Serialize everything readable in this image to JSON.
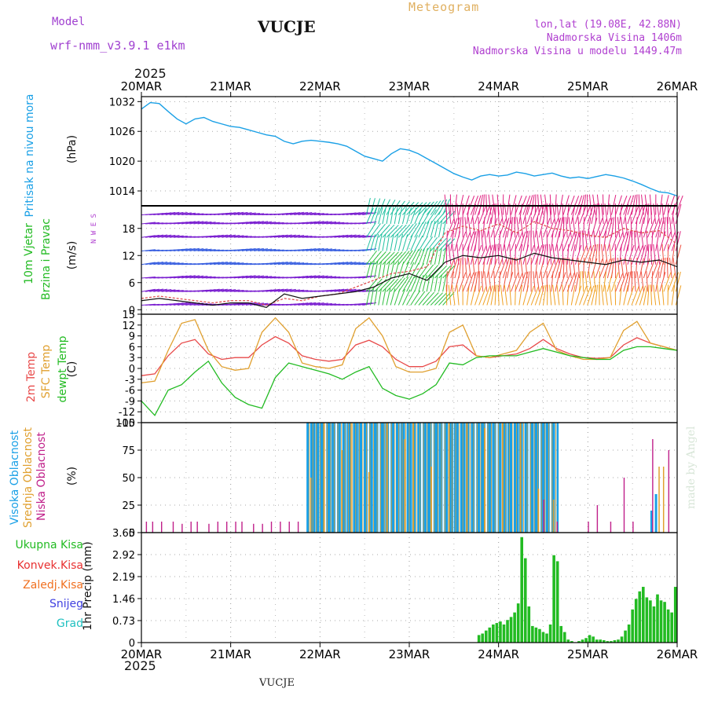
{
  "header": {
    "model_label": "Model",
    "model_name": "wrf-nmm_v3.9.1 e1km",
    "station": "VUCJE",
    "title": "Meteogram",
    "lonlat": "lon,lat (19.08E, 42.88N)",
    "elevation": "Nadmorska Visina 1406m",
    "model_elevation": "Nadmorska Visina u modelu 1449.47m",
    "year": "2025",
    "bottom_station": "VUCJE",
    "credit": "made by Angel"
  },
  "colors": {
    "pressure": "#1aa0e6",
    "wind_label": "#22bb22",
    "wind_speed": "#111111",
    "wind_gust": "#e05050",
    "temp2m": "#e84a4a",
    "sfc_temp": "#e0a030",
    "dewpoint": "#22bb22",
    "cloud_high": "#1aa0e6",
    "cloud_mid": "#e0a030",
    "cloud_low": "#c0208a",
    "precip_total": "#22bb22",
    "precip_conv": "#e83030",
    "precip_frz": "#f07020",
    "snow": "#4040e0",
    "hail": "#20c0c0",
    "model_text": "#a040d0",
    "title_text": "#e0b060",
    "info_text": "#b040d0"
  },
  "chart_data": [
    {
      "type": "line",
      "id": "pressure",
      "ylabel_main": "Pritisak na nivou mora",
      "ylabel_unit": "(hPa)",
      "ylim": [
        1011,
        1033
      ],
      "yticks": [
        1014,
        1020,
        1026,
        1032
      ],
      "x_categories": [
        "20MAR",
        "21MAR",
        "22MAR",
        "23MAR",
        "24MAR",
        "25MAR",
        "26MAR"
      ],
      "series": [
        {
          "name": "Pritisak na nivou mora",
          "x": [
            0,
            0.1,
            0.2,
            0.3,
            0.4,
            0.5,
            0.6,
            0.7,
            0.8,
            0.9,
            1.0,
            1.1,
            1.2,
            1.3,
            1.4,
            1.5,
            1.6,
            1.7,
            1.8,
            1.9,
            2.0,
            2.1,
            2.2,
            2.3,
            2.4,
            2.5,
            2.6,
            2.7,
            2.8,
            2.9,
            3.0,
            3.1,
            3.2,
            3.3,
            3.4,
            3.5,
            3.6,
            3.7,
            3.8,
            3.9,
            4.0,
            4.1,
            4.2,
            4.3,
            4.4,
            4.5,
            4.6,
            4.7,
            4.8,
            4.9,
            5.0,
            5.1,
            5.2,
            5.3,
            5.4,
            5.5,
            5.6,
            5.7,
            5.8,
            5.9,
            6.0
          ],
          "values": [
            1030.5,
            1031.8,
            1031.6,
            1030.0,
            1028.5,
            1027.5,
            1028.5,
            1028.8,
            1028.0,
            1027.5,
            1027.0,
            1026.8,
            1026.3,
            1025.8,
            1025.3,
            1025.0,
            1024.0,
            1023.5,
            1024.0,
            1024.2,
            1024.0,
            1023.8,
            1023.5,
            1023.0,
            1022.0,
            1021.0,
            1020.5,
            1020.0,
            1021.5,
            1022.5,
            1022.2,
            1021.5,
            1020.5,
            1019.5,
            1018.5,
            1017.5,
            1016.8,
            1016.2,
            1017.0,
            1017.3,
            1017.0,
            1017.2,
            1017.8,
            1017.5,
            1017.0,
            1017.3,
            1017.6,
            1017.0,
            1016.6,
            1016.8,
            1016.5,
            1016.9,
            1017.3,
            1017.0,
            1016.6,
            1016.0,
            1015.3,
            1014.5,
            1013.8,
            1013.6,
            1013.0
          ]
        }
      ]
    },
    {
      "type": "line",
      "id": "wind",
      "ylabel_main": "10m Vjetar",
      "ylabel_sub": "Brzina i Pravac",
      "ylabel_unit": "(m/s)",
      "compass": "N W E S",
      "ylim": [
        -1,
        23
      ],
      "yticks": [
        0,
        6,
        12,
        18
      ],
      "series": [
        {
          "name": "Brzina",
          "x": [
            0,
            0.2,
            0.4,
            0.6,
            0.8,
            1.0,
            1.2,
            1.4,
            1.6,
            1.8,
            2.0,
            2.2,
            2.4,
            2.6,
            2.8,
            3.0,
            3.2,
            3.4,
            3.6,
            3.8,
            4.0,
            4.2,
            4.4,
            4.6,
            4.8,
            5.0,
            5.2,
            5.4,
            5.6,
            5.8,
            6.0
          ],
          "values": [
            2.0,
            2.5,
            2.0,
            1.5,
            1.0,
            1.5,
            1.5,
            0.5,
            3.5,
            2.5,
            3.0,
            3.5,
            4.0,
            5.0,
            7.0,
            8.0,
            6.5,
            10.5,
            12.0,
            11.5,
            12.0,
            11.0,
            12.5,
            11.5,
            11.0,
            10.5,
            10.0,
            11.0,
            10.5,
            11.0,
            9.5
          ]
        },
        {
          "name": "Udar",
          "x": [
            0,
            0.2,
            0.4,
            0.6,
            0.8,
            1.0,
            1.2,
            1.4,
            1.6,
            1.8,
            2.0,
            2.2,
            2.4,
            2.6,
            2.8,
            3.0,
            3.2,
            3.4,
            3.6,
            3.8,
            4.0,
            4.2,
            4.4,
            4.6,
            4.8,
            5.0,
            5.2,
            5.4,
            5.6,
            5.8,
            6.0
          ],
          "values": [
            2.5,
            3.0,
            2.5,
            2.0,
            1.5,
            2.0,
            2.0,
            1.0,
            2.5,
            2.0,
            3.0,
            3.5,
            5.0,
            6.5,
            8.0,
            8.5,
            9.5,
            17.0,
            18.5,
            17.5,
            19.0,
            17.0,
            19.5,
            18.0,
            17.5,
            16.5,
            16.0,
            18.0,
            17.0,
            17.5,
            14.5
          ]
        }
      ]
    },
    {
      "type": "line",
      "id": "temperature",
      "ylabel_main": "2m Temp",
      "ylabel_sub": "SFC Temp",
      "ylabel_sub2": "dewpt Temp",
      "ylabel_unit": "(C)",
      "ylim": [
        -15,
        15
      ],
      "yticks": [
        -15,
        -12,
        -9,
        -6,
        -3,
        0,
        3,
        6,
        9,
        12,
        15
      ],
      "series": [
        {
          "name": "2m Temp",
          "x": [
            0,
            0.15,
            0.3,
            0.45,
            0.6,
            0.75,
            0.9,
            1.05,
            1.2,
            1.35,
            1.5,
            1.65,
            1.8,
            1.95,
            2.1,
            2.25,
            2.4,
            2.55,
            2.7,
            2.85,
            3.0,
            3.15,
            3.3,
            3.45,
            3.6,
            3.75,
            3.9,
            4.05,
            4.2,
            4.35,
            4.5,
            4.65,
            4.8,
            4.95,
            5.1,
            5.25,
            5.4,
            5.55,
            5.7,
            5.85,
            6.0
          ],
          "values": [
            -2.0,
            -1.5,
            3.5,
            7.0,
            8.0,
            4.0,
            2.5,
            3.0,
            3.0,
            6.5,
            8.8,
            7.0,
            3.5,
            2.5,
            2.0,
            2.5,
            6.5,
            7.8,
            6.0,
            2.5,
            0.5,
            0.5,
            2.0,
            6.0,
            6.5,
            3.5,
            3.0,
            3.5,
            4.0,
            5.5,
            8.0,
            5.5,
            4.0,
            3.0,
            2.8,
            3.0,
            6.5,
            8.5,
            7.0,
            6.0,
            5.0
          ]
        },
        {
          "name": "SFC Temp",
          "x": [
            0,
            0.15,
            0.3,
            0.45,
            0.6,
            0.75,
            0.9,
            1.05,
            1.2,
            1.35,
            1.5,
            1.65,
            1.8,
            1.95,
            2.1,
            2.25,
            2.4,
            2.55,
            2.7,
            2.85,
            3.0,
            3.15,
            3.3,
            3.45,
            3.6,
            3.75,
            3.9,
            4.05,
            4.2,
            4.35,
            4.5,
            4.65,
            4.8,
            4.95,
            5.1,
            5.25,
            5.4,
            5.55,
            5.7,
            5.85,
            6.0
          ],
          "values": [
            -4.0,
            -3.5,
            5.0,
            12.5,
            13.5,
            5.0,
            0.5,
            -0.5,
            0.0,
            10.0,
            14.0,
            10.0,
            1.5,
            0.5,
            0.0,
            1.0,
            11.0,
            14.0,
            9.0,
            0.5,
            -1.0,
            -1.0,
            0.0,
            10.0,
            12.0,
            3.5,
            3.0,
            4.0,
            5.0,
            10.0,
            12.5,
            5.0,
            3.5,
            2.5,
            2.5,
            3.0,
            10.5,
            13.0,
            7.0,
            6.0,
            5.0
          ]
        },
        {
          "name": "dewpt Temp",
          "x": [
            0,
            0.15,
            0.3,
            0.45,
            0.6,
            0.75,
            0.9,
            1.05,
            1.2,
            1.35,
            1.5,
            1.65,
            1.8,
            1.95,
            2.1,
            2.25,
            2.4,
            2.55,
            2.7,
            2.85,
            3.0,
            3.15,
            3.3,
            3.45,
            3.6,
            3.75,
            3.9,
            4.05,
            4.2,
            4.35,
            4.5,
            4.65,
            4.8,
            4.95,
            5.1,
            5.25,
            5.4,
            5.55,
            5.7,
            5.85,
            6.0
          ],
          "values": [
            -9.0,
            -13.0,
            -6.0,
            -4.5,
            -1.0,
            2.0,
            -4.0,
            -8.0,
            -10.0,
            -11.0,
            -2.5,
            1.5,
            0.5,
            -0.5,
            -1.5,
            -3.0,
            -1.0,
            0.5,
            -5.5,
            -7.5,
            -8.5,
            -7.0,
            -4.5,
            1.5,
            1.0,
            3.0,
            3.5,
            3.5,
            3.5,
            4.5,
            5.5,
            4.5,
            3.5,
            3.0,
            2.5,
            2.5,
            5.0,
            6.0,
            6.0,
            5.5,
            5.0
          ]
        }
      ]
    },
    {
      "type": "bar",
      "id": "clouds",
      "ylabel_main": "Visoka Oblacnost",
      "ylabel_sub": "Srednja Oblacnost",
      "ylabel_sub2": "Niska Oblacnost",
      "ylabel_unit": "(%)",
      "ylim": [
        0,
        100
      ],
      "yticks": [
        0,
        25,
        50,
        75,
        100
      ],
      "series": [
        {
          "name": "Visoka Oblacnost",
          "x": [
            1.85,
            1.92,
            2.0,
            2.1,
            2.2,
            2.3,
            2.4,
            2.5,
            2.6,
            2.7,
            2.8,
            2.9,
            3.0,
            3.1,
            3.2,
            3.3,
            3.4,
            3.5,
            3.6,
            3.7,
            3.8,
            3.9,
            4.0,
            4.1,
            4.2,
            4.3,
            4.4,
            4.5,
            4.6,
            5.7,
            5.75
          ],
          "values": [
            100,
            100,
            100,
            100,
            100,
            100,
            100,
            100,
            100,
            100,
            100,
            100,
            100,
            100,
            100,
            100,
            100,
            100,
            100,
            100,
            100,
            100,
            100,
            100,
            100,
            100,
            100,
            100,
            100,
            20,
            35
          ]
        },
        {
          "name": "Srednja Oblacnost",
          "x": [
            1.9,
            2.05,
            2.25,
            2.35,
            2.55,
            2.75,
            2.95,
            3.05,
            3.25,
            3.45,
            3.65,
            3.85,
            4.05,
            4.25,
            4.45,
            4.62,
            5.8,
            5.85
          ],
          "values": [
            50,
            100,
            75,
            100,
            55,
            100,
            85,
            100,
            60,
            100,
            100,
            95,
            100,
            100,
            40,
            30,
            60,
            60
          ]
        },
        {
          "name": "Niska Oblacnost",
          "x": [
            0.05,
            0.12,
            0.22,
            0.35,
            0.45,
            0.55,
            0.62,
            0.75,
            0.85,
            0.95,
            1.05,
            1.12,
            1.25,
            1.35,
            1.45,
            1.55,
            1.65,
            1.75,
            4.5,
            4.65,
            5.0,
            5.1,
            5.25,
            5.4,
            5.5,
            5.72,
            5.9
          ],
          "values": [
            10,
            10,
            10,
            10,
            8,
            10,
            10,
            8,
            10,
            10,
            10,
            10,
            8,
            8,
            10,
            10,
            10,
            10,
            30,
            10,
            10,
            25,
            10,
            50,
            10,
            85,
            75
          ]
        }
      ]
    },
    {
      "type": "bar",
      "id": "precip",
      "ylabel_main": "1hr Precip (mm)",
      "legend": [
        "Ukupna Kisa",
        "Konvek.Kisa",
        "Zaledj.Kisa",
        "Snijeg",
        "Grad"
      ],
      "ylim": [
        0,
        3.65
      ],
      "yticks": [
        "0",
        "0.73",
        "1.46",
        "2.19",
        "2.92",
        "3.65"
      ],
      "series": [
        {
          "name": "Ukupna Kisa",
          "x": [
            3.78,
            3.82,
            3.86,
            3.9,
            3.94,
            3.98,
            4.02,
            4.06,
            4.1,
            4.14,
            4.18,
            4.22,
            4.26,
            4.3,
            4.34,
            4.38,
            4.42,
            4.46,
            4.5,
            4.54,
            4.58,
            4.62,
            4.66,
            4.7,
            4.74,
            4.78,
            4.82,
            4.86,
            4.9,
            4.94,
            4.98,
            5.02,
            5.06,
            5.1,
            5.14,
            5.18,
            5.22,
            5.26,
            5.3,
            5.34,
            5.38,
            5.42,
            5.46,
            5.5,
            5.54,
            5.58,
            5.62,
            5.66,
            5.7,
            5.74,
            5.78,
            5.82,
            5.86,
            5.9,
            5.94,
            5.98
          ],
          "values": [
            0.25,
            0.3,
            0.4,
            0.5,
            0.6,
            0.65,
            0.7,
            0.6,
            0.75,
            0.85,
            1.0,
            1.3,
            3.5,
            2.8,
            1.2,
            0.55,
            0.5,
            0.45,
            0.35,
            0.3,
            0.6,
            2.9,
            2.7,
            0.55,
            0.35,
            0.1,
            0.05,
            0.0,
            0.05,
            0.1,
            0.15,
            0.25,
            0.2,
            0.1,
            0.1,
            0.08,
            0.05,
            0.05,
            0.08,
            0.1,
            0.2,
            0.4,
            0.6,
            1.1,
            1.45,
            1.7,
            1.85,
            1.5,
            1.4,
            1.2,
            1.6,
            1.4,
            1.35,
            1.1,
            1.0,
            1.85
          ]
        }
      ]
    }
  ]
}
